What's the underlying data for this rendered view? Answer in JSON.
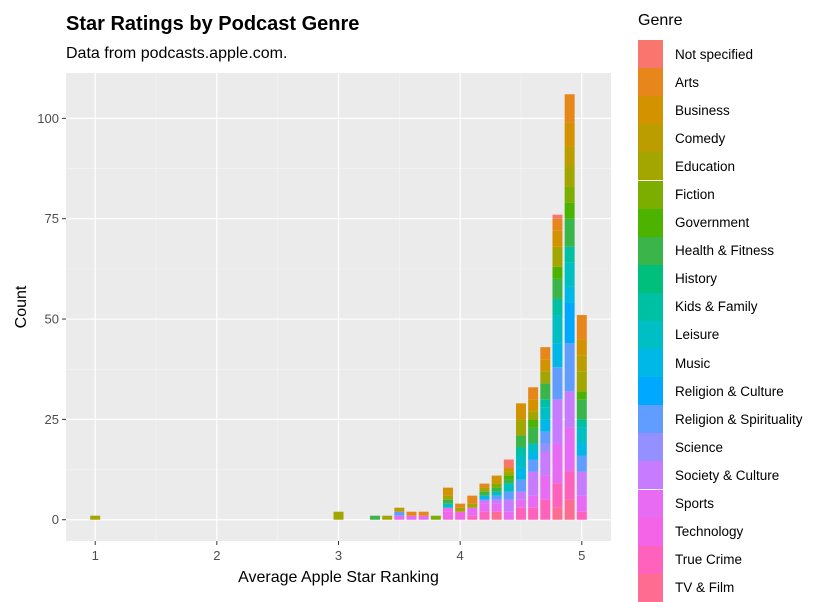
{
  "chart_data": {
    "type": "bar",
    "stacked": true,
    "title": "Star Ratings by Podcast Genre",
    "subtitle": "Data from podcasts.apple.com.",
    "xlabel": "Average Apple Star Ranking",
    "ylabel": "Count",
    "xlim": [
      0.76,
      5.24
    ],
    "ylim": [
      -5.3,
      111.3
    ],
    "x_ticks": [
      1,
      2,
      3,
      4,
      5
    ],
    "y_ticks": [
      0,
      25,
      50,
      75,
      100
    ],
    "grid": true,
    "legend_title": "Genre",
    "legend_position": "right",
    "bin_width": 0.082,
    "genres": [
      {
        "name": "Not specified",
        "color": "#F8766D"
      },
      {
        "name": "Arts",
        "color": "#E7861B"
      },
      {
        "name": "Business",
        "color": "#D39200"
      },
      {
        "name": "Comedy",
        "color": "#BB9D00"
      },
      {
        "name": "Education",
        "color": "#A3A500"
      },
      {
        "name": "Fiction",
        "color": "#7CAE00"
      },
      {
        "name": "Government",
        "color": "#4CB400"
      },
      {
        "name": "Health & Fitness",
        "color": "#39B54A"
      },
      {
        "name": "History",
        "color": "#00BF7D"
      },
      {
        "name": "Kids & Family",
        "color": "#00C0A3"
      },
      {
        "name": "Leisure",
        "color": "#00BFC4"
      },
      {
        "name": "Music",
        "color": "#00B8E7"
      },
      {
        "name": "Religion & Culture",
        "color": "#00A9FF"
      },
      {
        "name": "Religion & Spirituality",
        "color": "#619CFF"
      },
      {
        "name": "Science",
        "color": "#9590FF"
      },
      {
        "name": "Society & Culture",
        "color": "#C77CFF"
      },
      {
        "name": "Sports",
        "color": "#E76BF3"
      },
      {
        "name": "Technology",
        "color": "#F365E6"
      },
      {
        "name": "True Crime",
        "color": "#FF62BC"
      },
      {
        "name": "TV & Film",
        "color": "#FF6C91"
      }
    ],
    "bars": [
      {
        "x": 1.0,
        "total": 1,
        "segments": {
          "Education": 1
        }
      },
      {
        "x": 3.0,
        "total": 2,
        "segments": {
          "Education": 2
        }
      },
      {
        "x": 3.3,
        "total": 1,
        "segments": {
          "Health & Fitness": 1
        }
      },
      {
        "x": 3.4,
        "total": 1,
        "segments": {
          "Education": 1
        }
      },
      {
        "x": 3.5,
        "total": 3,
        "segments": {
          "Sports": 1,
          "Religion & Spirituality": 1,
          "Comedy": 1
        }
      },
      {
        "x": 3.6,
        "total": 2,
        "segments": {
          "Sports": 1,
          "Arts": 1
        }
      },
      {
        "x": 3.7,
        "total": 2,
        "segments": {
          "Sports": 1,
          "Arts": 1
        }
      },
      {
        "x": 3.8,
        "total": 1,
        "segments": {
          "Fiction": 1
        }
      },
      {
        "x": 3.9,
        "total": 8,
        "segments": {
          "Sports": 1,
          "Technology": 2,
          "Leisure": 1,
          "Health & Fitness": 1,
          "Education": 1,
          "Business": 2
        }
      },
      {
        "x": 4.0,
        "total": 4,
        "segments": {
          "Technology": 2,
          "Education": 1,
          "Arts": 1
        }
      },
      {
        "x": 4.1,
        "total": 6,
        "segments": {
          "True Crime": 1,
          "Sports": 2,
          "Education": 1,
          "Arts": 2
        }
      },
      {
        "x": 4.2,
        "total": 9,
        "segments": {
          "True Crime": 2,
          "Sports": 2,
          "Society & Culture": 1,
          "Music": 1,
          "Health & Fitness": 1,
          "Education": 1,
          "Arts": 1
        }
      },
      {
        "x": 4.3,
        "total": 11,
        "segments": {
          "TV & Film": 2,
          "Sports": 2,
          "Society & Culture": 1,
          "Religion & Spirituality": 1,
          "Leisure": 1,
          "Health & Fitness": 1,
          "Fiction": 1,
          "Business": 2
        }
      },
      {
        "x": 4.4,
        "total": 15,
        "segments": {
          "Sports": 2,
          "Society & Culture": 3,
          "Religion & Spirituality": 2,
          "Leisure": 2,
          "Health & Fitness": 1,
          "Government": 1,
          "Education": 1,
          "Business": 1,
          "Not specified": 2
        }
      },
      {
        "x": 4.5,
        "total": 29,
        "segments": {
          "True Crime": 3,
          "Sports": 2,
          "Society & Culture": 2,
          "Religion & Spirituality": 3,
          "Leisure": 3,
          "Music": 3,
          "Kids & Family": 2,
          "Health & Fitness": 3,
          "Education": 4,
          "Business": 4
        }
      },
      {
        "x": 4.6,
        "total": 33,
        "segments": {
          "True Crime": 3,
          "Sports": 3,
          "Society & Culture": 6,
          "Religion & Spirituality": 3,
          "Leisure": 2,
          "Music": 2,
          "Health & Fitness": 4,
          "Government": 2,
          "Education": 2,
          "Business": 3,
          "Arts": 3
        }
      },
      {
        "x": 4.7,
        "total": 43,
        "segments": {
          "True Crime": 5,
          "Sports": 6,
          "Society & Culture": 6,
          "Science": 2,
          "Religion & Spirituality": 3,
          "Leisure": 3,
          "Music": 3,
          "Kids & Family": 2,
          "Health & Fitness": 4,
          "Education": 3,
          "Business": 3,
          "Arts": 3
        }
      },
      {
        "x": 4.8,
        "total": 76,
        "segments": {
          "TV & Film": 3,
          "True Crime": 6,
          "Sports": 10,
          "Society & Culture": 11,
          "Religion & Spirituality": 8,
          "Leisure": 7,
          "Music": 6,
          "Kids & Family": 4,
          "Health & Fitness": 5,
          "Government": 3,
          "Education": 5,
          "Business": 4,
          "Arts": 3,
          "Not specified": 1
        }
      },
      {
        "x": 4.9,
        "total": 106,
        "segments": {
          "TV & Film": 5,
          "True Crime": 7,
          "Sports": 11,
          "Society & Culture": 9,
          "Religion & Spirituality": 12,
          "Religion & Culture": 10,
          "Music": 4,
          "Leisure": 6,
          "Kids & Family": 4,
          "Health & Fitness": 7,
          "Government": 4,
          "Fiction": 4,
          "Education": 5,
          "Comedy": 5,
          "Business": 6,
          "Arts": 7
        }
      },
      {
        "x": 5.0,
        "total": 51,
        "segments": {
          "True Crime": 2,
          "Sports": 4,
          "Society & Culture": 6,
          "Religion & Spirituality": 4,
          "Leisure": 4,
          "Music": 3,
          "Kids & Family": 2,
          "Health & Fitness": 5,
          "Government": 2,
          "Education": 5,
          "Comedy": 4,
          "Business": 4,
          "Arts": 6
        }
      }
    ]
  }
}
